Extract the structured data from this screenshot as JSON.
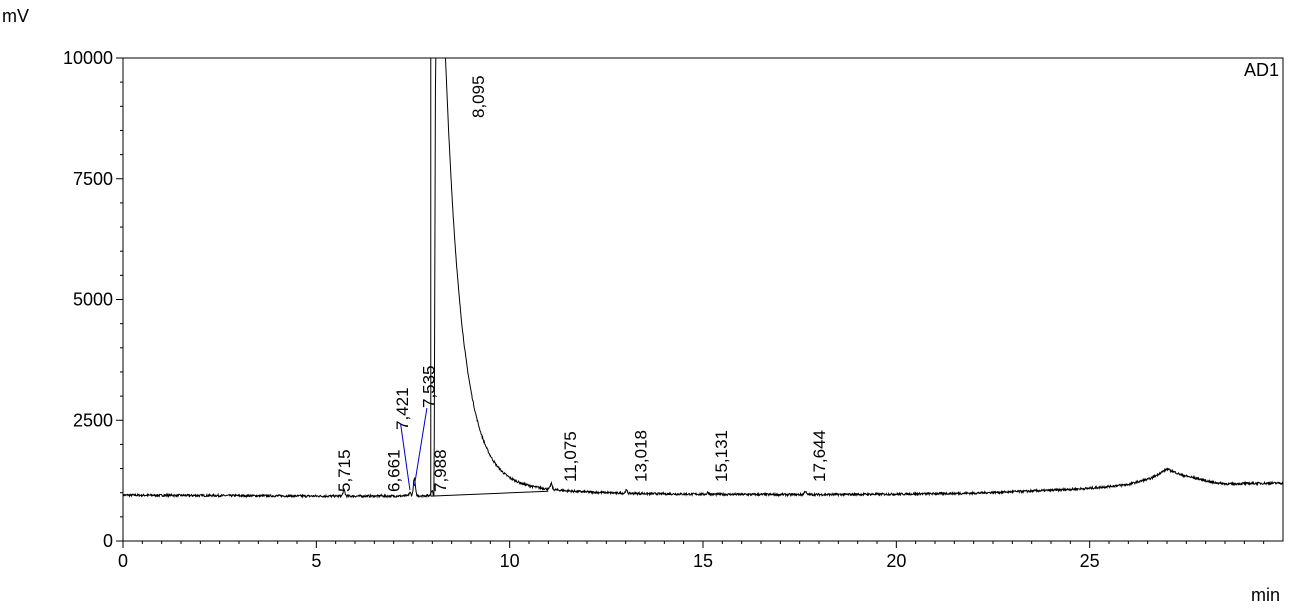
{
  "chart_data": {
    "type": "line",
    "ylabel": "mV",
    "xlabel": "min",
    "detector_label": "AD1",
    "xlim": [
      0,
      30
    ],
    "ylim": [
      0,
      10000
    ],
    "x_ticks": [
      0,
      5,
      10,
      15,
      20,
      25
    ],
    "x_tick_labels": [
      "0",
      "5",
      "10",
      "15",
      "20",
      "25"
    ],
    "y_ticks": [
      0,
      2500,
      5000,
      7500,
      10000
    ],
    "y_tick_labels": [
      "0",
      "2500",
      "5000",
      "7500",
      "10000"
    ],
    "grid": false,
    "line_color": "#000000",
    "annotation_color": "#0000cc",
    "peaks": [
      {
        "rt": 5.715,
        "label": "5,715",
        "height": 1060
      },
      {
        "rt": 6.661,
        "label": "6,661",
        "height": 940
      },
      {
        "rt": 7.421,
        "label": "7,421",
        "height": 1000
      },
      {
        "rt": 7.535,
        "label": "7,535",
        "height": 1300
      },
      {
        "rt": 7.988,
        "label": "7,988",
        "height": 1050
      },
      {
        "rt": 8.095,
        "label": "8,095",
        "height": 10000
      },
      {
        "rt": 11.075,
        "label": "11,075",
        "height": 1080
      },
      {
        "rt": 13.018,
        "label": "13,018",
        "height": 1020
      },
      {
        "rt": 15.131,
        "label": "15,131",
        "height": 1000
      },
      {
        "rt": 17.644,
        "label": "17,644",
        "height": 1030
      }
    ],
    "baseline_points": [
      [
        0,
        950
      ],
      [
        5,
        930
      ],
      [
        7,
        930
      ],
      [
        8,
        940
      ],
      [
        9,
        980
      ],
      [
        10,
        960
      ],
      [
        12,
        960
      ],
      [
        15,
        960
      ],
      [
        18,
        960
      ],
      [
        20,
        970
      ],
      [
        22,
        990
      ],
      [
        24,
        1050
      ],
      [
        25,
        1090
      ],
      [
        26,
        1170
      ],
      [
        26.6,
        1300
      ],
      [
        27,
        1490
      ],
      [
        27.4,
        1360
      ],
      [
        27.8,
        1290
      ],
      [
        28.2,
        1210
      ],
      [
        28.6,
        1180
      ],
      [
        29,
        1190
      ],
      [
        30,
        1200
      ]
    ]
  }
}
